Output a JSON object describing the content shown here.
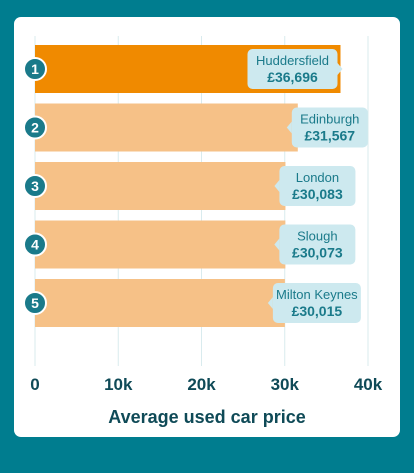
{
  "colors": {
    "background": "#007d8f",
    "card": "#ffffff",
    "bar_highlight": "#f08a00",
    "bar_normal": "#f6c187",
    "label_box": "#cde9ef",
    "label_text": "#1a7a8a",
    "rank_circle": "#1a7a8a",
    "axis_text": "#0f4a57",
    "grid": "#d9ebee"
  },
  "chart_data": {
    "type": "bar",
    "orientation": "horizontal",
    "categories": [
      "Huddersfield",
      "Edinburgh",
      "London",
      "Slough",
      "Milton Keynes"
    ],
    "values": [
      36696,
      31567,
      30083,
      30073,
      30015
    ],
    "value_labels": [
      "£36,696",
      "£31,567",
      "£30,083",
      "£30,073",
      "£30,015"
    ],
    "ranks": [
      "1",
      "2",
      "3",
      "4",
      "5"
    ],
    "highlight_index": 0,
    "xlabel": "Average used car price",
    "ylabel": "",
    "xlim": [
      0,
      40000
    ],
    "xticks": [
      0,
      10000,
      20000,
      30000,
      40000
    ],
    "xtick_labels": [
      "0",
      "10k",
      "20k",
      "30k",
      "40k"
    ],
    "grid": true
  }
}
